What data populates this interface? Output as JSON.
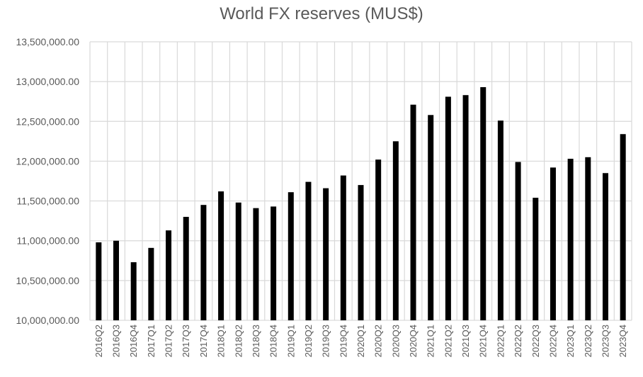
{
  "chart_data": {
    "type": "bar",
    "title": "World FX reserves (MUS$)",
    "xlabel": "",
    "ylabel": "",
    "ylim": [
      10000000,
      13500000
    ],
    "yticks": [
      10000000,
      10500000,
      11000000,
      11500000,
      12000000,
      12500000,
      13000000,
      13500000
    ],
    "ytick_labels": [
      "10,000,000.00",
      "10,500,000.00",
      "11,000,000.00",
      "11,500,000.00",
      "12,000,000.00",
      "12,500,000.00",
      "13,000,000.00",
      "13,500,000.00"
    ],
    "grid": true,
    "bar_color": "#000000",
    "gridline_color": "#d9d9d9",
    "categories": [
      "2016Q2",
      "2016Q3",
      "2016Q4",
      "2017Q1",
      "2017Q2",
      "2017Q3",
      "2017Q4",
      "2018Q1",
      "2018Q2",
      "2018Q3",
      "2018Q4",
      "2019Q1",
      "2019Q2",
      "2019Q3",
      "2019Q4",
      "2020Q1",
      "2020Q2",
      "2020Q3",
      "2020Q4",
      "2021Q1",
      "2021Q2",
      "2021Q3",
      "2021Q4",
      "2022Q1",
      "2022Q2",
      "2022Q3",
      "2022Q4",
      "2023Q1",
      "2023Q2",
      "2023Q3",
      "2023Q4"
    ],
    "values": [
      10980000,
      11000000,
      10730000,
      10910000,
      11130000,
      11300000,
      11450000,
      11620000,
      11480000,
      11410000,
      11430000,
      11610000,
      11740000,
      11660000,
      11820000,
      11700000,
      12020000,
      12250000,
      12710000,
      12580000,
      12810000,
      12830000,
      12930000,
      12510000,
      11990000,
      11540000,
      11920000,
      12030000,
      12050000,
      11850000,
      12340000
    ]
  }
}
